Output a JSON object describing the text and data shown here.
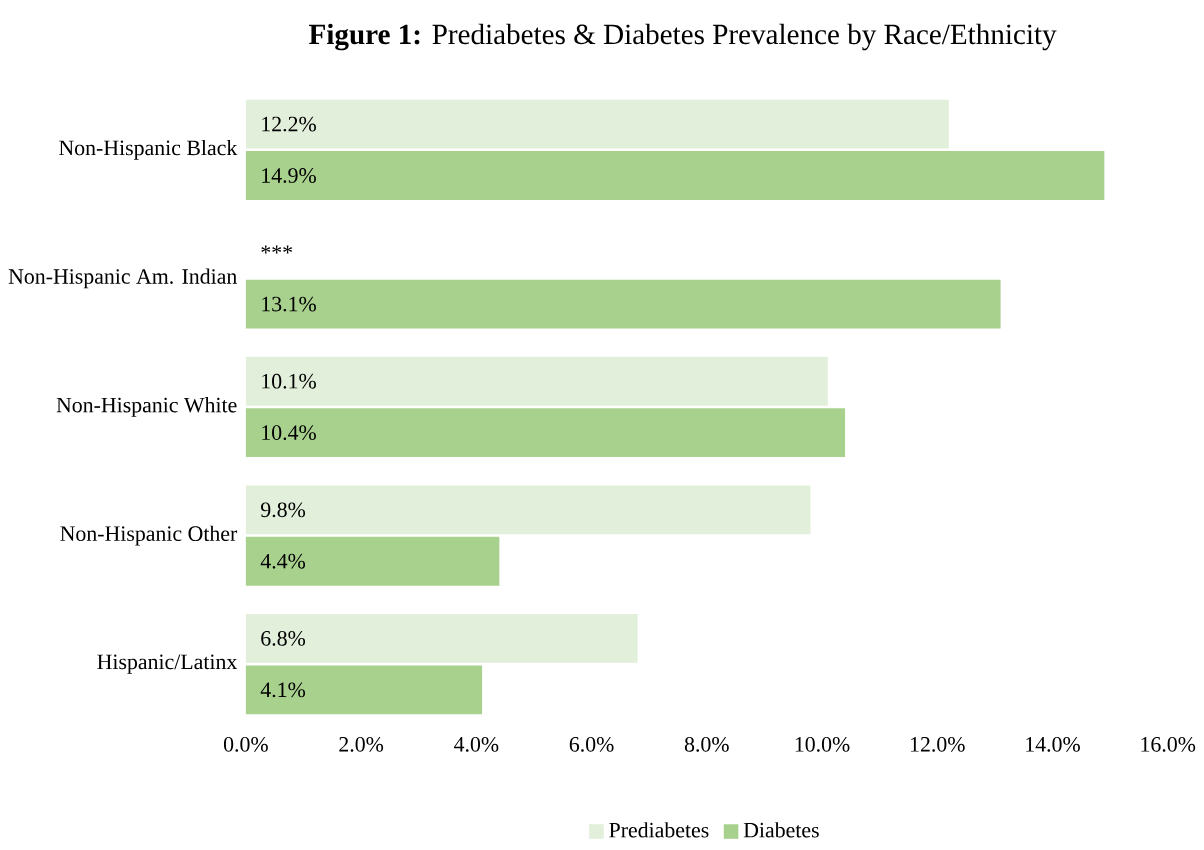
{
  "chart_data": {
    "type": "bar",
    "orientation": "horizontal",
    "title": "**Figure 1:** Prediabetes & Diabetes Prevalence by Race/Ethnicity",
    "categories": [
      "Non-Hispanic Black",
      "Non-Hispanic Am. Indian",
      "Non-Hispanic White",
      "Non-Hispanic Other",
      "Hispanic/Latinx"
    ],
    "series": [
      {
        "name": "Prediabetes",
        "color": "#e2efda",
        "values": [
          12.2,
          null,
          10.1,
          9.8,
          6.8
        ],
        "value_labels": [
          "12.2%",
          "***",
          "10.1%",
          "9.8%",
          "6.8%"
        ]
      },
      {
        "name": "Diabetes",
        "color": "#a9d18e",
        "values": [
          14.9,
          13.1,
          10.4,
          4.4,
          4.1
        ],
        "value_labels": [
          "14.9%",
          "13.1%",
          "10.4%",
          "4.4%",
          "4.1%"
        ]
      }
    ],
    "xlim": [
      0,
      16
    ],
    "xticks": [
      {
        "value": 0,
        "label": "0.0%"
      },
      {
        "value": 2,
        "label": "2.0%"
      },
      {
        "value": 4,
        "label": "4.0%"
      },
      {
        "value": 6,
        "label": "6.0%"
      },
      {
        "value": 8,
        "label": "8.0%"
      },
      {
        "value": 10,
        "label": "10.0%"
      },
      {
        "value": 12,
        "label": "12.0%"
      },
      {
        "value": 14,
        "label": "14.0%"
      },
      {
        "value": 16,
        "label": "16.0%"
      }
    ],
    "legend": "bottom"
  }
}
